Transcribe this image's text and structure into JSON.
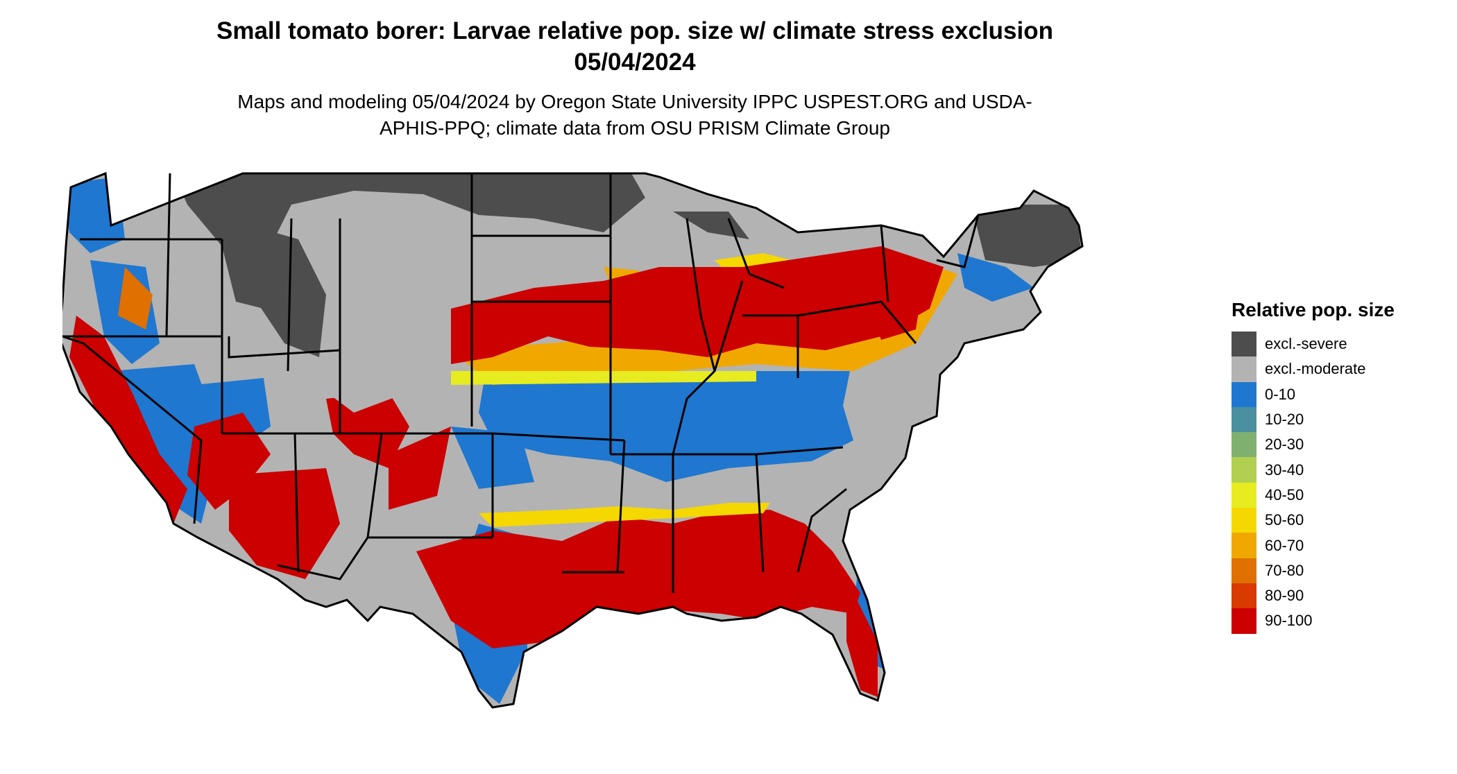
{
  "title": "Small tomato borer: Larvae relative pop. size w/ climate stress exclusion 05/04/2024",
  "subtitle": "Maps and modeling 05/04/2024 by Oregon State University IPPC USPEST.ORG and USDA-APHIS-PPQ; climate data from OSU PRISM Climate Group",
  "legend": {
    "title": "Relative pop. size",
    "items": [
      {
        "label": "excl.-severe",
        "color": "#4d4d4d"
      },
      {
        "label": "excl.-moderate",
        "color": "#b3b3b3"
      },
      {
        "label": "0-10",
        "color": "#1f77d0"
      },
      {
        "label": "10-20",
        "color": "#4a90a0"
      },
      {
        "label": "20-30",
        "color": "#7fb070"
      },
      {
        "label": "30-40",
        "color": "#b2d050"
      },
      {
        "label": "40-50",
        "color": "#e6ec20"
      },
      {
        "label": "50-60",
        "color": "#f5d800"
      },
      {
        "label": "60-70",
        "color": "#f0a800"
      },
      {
        "label": "70-80",
        "color": "#e07000"
      },
      {
        "label": "80-90",
        "color": "#d83a00"
      },
      {
        "label": "90-100",
        "color": "#cc0000"
      }
    ]
  }
}
